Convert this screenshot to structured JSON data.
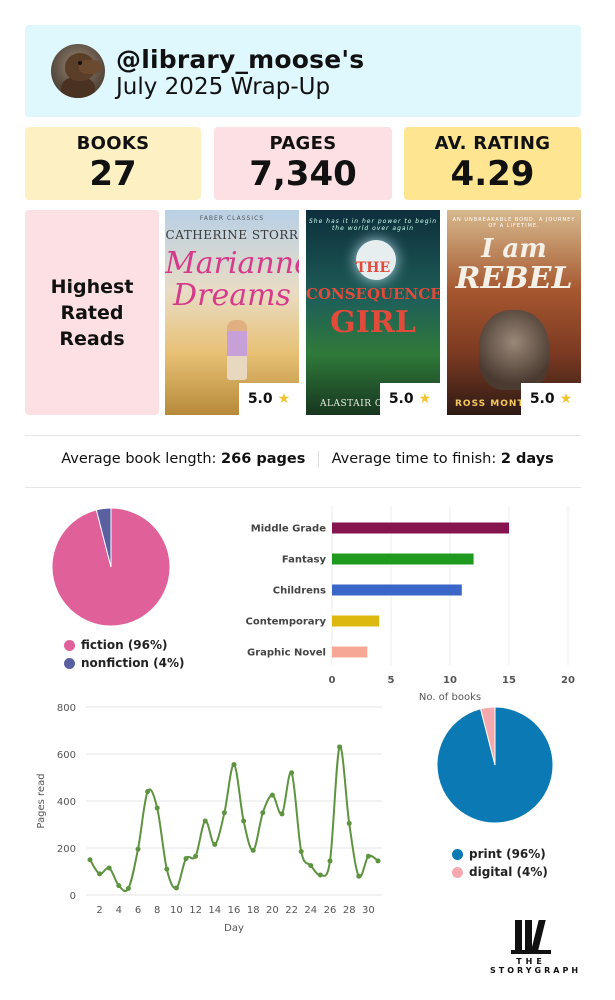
{
  "header": {
    "handle": "@library_moose's",
    "subtitle": "July 2025 Wrap-Up"
  },
  "stats": [
    {
      "label": "BOOKS",
      "value": "27"
    },
    {
      "label": "PAGES",
      "value": "7,340"
    },
    {
      "label": "AV. RATING",
      "value": "4.29"
    }
  ],
  "highest_rated": {
    "label": "Highest Rated Reads",
    "books": [
      {
        "series": "FABER CLASSICS",
        "author": "CATHERINE STORR",
        "title_line1": "Marianne",
        "title_line2": "Dreams",
        "rating": "5.0"
      },
      {
        "series": "She has it in her power to begin the world over again",
        "title_line1": "THE",
        "title_line2": "CONSEQUENCE",
        "title_line3": "GIRL",
        "author": "ALASTAIR CHI",
        "rating": "5.0"
      },
      {
        "series": "AN UNBREAKABLE BOND. A JOURNEY OF A LIFETIME.",
        "title_line1": "I am",
        "title_line2": "REBEL",
        "author": "ROSS MONT",
        "rating": "5.0"
      }
    ]
  },
  "averages": {
    "length_label": "Average book length:",
    "length_value": "266 pages",
    "time_label": "Average time to finish:",
    "time_value": "2 days"
  },
  "colors": {
    "fiction": "#e0609a",
    "nonfiction": "#5a5fa0",
    "print": "#0a79b4",
    "digital": "#f5a9ae",
    "line": "#5e9440"
  },
  "chart_data": [
    {
      "type": "pie",
      "slices": [
        {
          "label": "fiction (96%)",
          "value": 96
        },
        {
          "label": "nonfiction (4%)",
          "value": 4
        }
      ],
      "legend": "bottom"
    },
    {
      "type": "bar",
      "orientation": "horizontal",
      "categories": [
        "Middle Grade",
        "Fantasy",
        "Childrens",
        "Contemporary",
        "Graphic Novel"
      ],
      "values": [
        15,
        12,
        11,
        4,
        3
      ],
      "bar_colors": [
        "#86144f",
        "#1f9a1f",
        "#3a66c8",
        "#dcb90e",
        "#f7a895"
      ],
      "xlabel": "No. of books",
      "xlim": [
        0,
        20
      ],
      "xticks": [
        0,
        5,
        10,
        15,
        20
      ],
      "grid": true
    },
    {
      "type": "line",
      "x": [
        1,
        2,
        3,
        4,
        5,
        6,
        7,
        8,
        9,
        10,
        11,
        12,
        13,
        14,
        15,
        16,
        17,
        18,
        19,
        20,
        21,
        22,
        23,
        24,
        25,
        26,
        27,
        28,
        29,
        30,
        31
      ],
      "values": [
        150,
        90,
        115,
        40,
        28,
        195,
        440,
        370,
        110,
        30,
        155,
        165,
        315,
        215,
        350,
        555,
        315,
        190,
        350,
        425,
        345,
        520,
        185,
        125,
        85,
        145,
        630,
        305,
        80,
        165,
        145
      ],
      "xlabel": "Day",
      "ylabel": "Pages read",
      "ylim": [
        0,
        800
      ],
      "yticks": [
        0,
        200,
        400,
        600,
        800
      ],
      "xticks": [
        2,
        4,
        6,
        8,
        10,
        12,
        14,
        16,
        18,
        20,
        22,
        24,
        26,
        28,
        30
      ],
      "grid": true
    },
    {
      "type": "pie",
      "slices": [
        {
          "label": "print (96%)",
          "value": 96
        },
        {
          "label": "digital (4%)",
          "value": 4
        }
      ],
      "legend": "bottom"
    }
  ],
  "logo": {
    "line1": "THE",
    "line2": "STORYGRAPH"
  }
}
